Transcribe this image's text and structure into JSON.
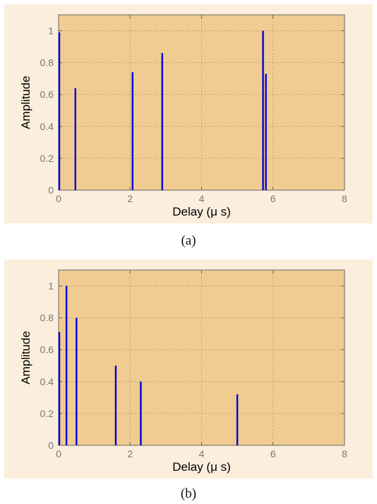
{
  "chart_data": [
    {
      "type": "stem",
      "panel": "(a)",
      "xlabel": "Delay (μ s)",
      "ylabel": "Amplitude",
      "xlim": [
        0,
        8
      ],
      "ylim": [
        0,
        1.1
      ],
      "xticks": [
        0,
        2,
        4,
        6,
        8
      ],
      "yticks": [
        0,
        0.2,
        0.4,
        0.6,
        0.8,
        1
      ],
      "grid": true,
      "color": "#0000e0",
      "x": [
        0.02,
        0.47,
        2.07,
        2.9,
        5.72,
        5.8
      ],
      "values": [
        0.99,
        0.64,
        0.74,
        0.86,
        1.0,
        0.73
      ]
    },
    {
      "type": "stem",
      "panel": "(b)",
      "xlabel": "Delay (μ s)",
      "ylabel": "Amplitude",
      "xlim": [
        0,
        8
      ],
      "ylim": [
        0,
        1.1
      ],
      "xticks": [
        0,
        2,
        4,
        6,
        8
      ],
      "yticks": [
        0,
        0.2,
        0.4,
        0.6,
        0.8,
        1
      ],
      "grid": true,
      "color": "#0000e0",
      "x": [
        0.02,
        0.22,
        0.5,
        1.6,
        2.3,
        5.0
      ],
      "values": [
        0.71,
        1.0,
        0.8,
        0.5,
        0.4,
        0.32
      ]
    }
  ],
  "captions": {
    "a": "(a)",
    "b": "(b)"
  }
}
